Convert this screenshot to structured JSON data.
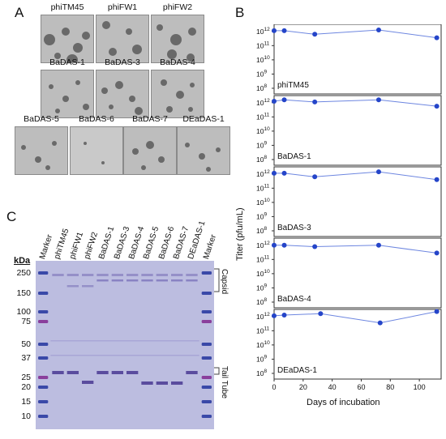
{
  "panel_a": {
    "letter": "A",
    "plaques": [
      {
        "label": "phiTM45"
      },
      {
        "label": "phiFW1"
      },
      {
        "label": "phiFW2"
      },
      {
        "label": "BaDAS-1"
      },
      {
        "label": "BaDAS-3"
      },
      {
        "label": "BaDAS-4"
      },
      {
        "label": "BaDAS-5"
      },
      {
        "label": "BaDAS-6"
      },
      {
        "label": "BaDAS-7"
      },
      {
        "label": "DEaDAS-1"
      }
    ]
  },
  "panel_c": {
    "letter": "C",
    "lanes": [
      "Marker",
      "phiTM45",
      "phiFW1",
      "phiFW2",
      "BaDAS-1",
      "BaDAS-3",
      "BaDAS-4",
      "BaDAS-5",
      "BaDAS-6",
      "BaDAS-7",
      "DEaDAS-1",
      "Marker"
    ],
    "kda_label": "kDa",
    "markers": [
      "250",
      "150",
      "100",
      "75",
      "50",
      "37",
      "25",
      "20",
      "15",
      "10"
    ],
    "capsid_label": "Capsid",
    "tail_label": "Tail Tube",
    "colors": {
      "gel": "#bcbde0",
      "band": "#5a4c9e",
      "marker_blue": "#3a49a8",
      "marker_purple": "#8a3f9c"
    }
  },
  "panel_b": {
    "letter": "B",
    "ylabel": "Titer (pfu/mL)",
    "xlabel": "Days of incubation",
    "x_ticks": [
      "0",
      "20",
      "40",
      "60",
      "80",
      "100"
    ]
  },
  "chart_data": {
    "type": "line",
    "x_range": [
      0,
      115
    ],
    "y_scale": "log",
    "y_range_log10": [
      7.6,
      12.5
    ],
    "y_ticks": [
      "10^12",
      "10^11",
      "10^10",
      "10^9",
      "10^8"
    ],
    "series_color": "#2545c9",
    "panels": [
      {
        "label": "phiTM45",
        "x": [
          0,
          7,
          28,
          72,
          112
        ],
        "y_log10": [
          12.05,
          12.05,
          11.8,
          12.1,
          11.55
        ]
      },
      {
        "label": "BaDAS-1",
        "x": [
          0,
          7,
          28,
          72,
          112
        ],
        "y_log10": [
          12.1,
          12.2,
          12.05,
          12.2,
          11.75
        ]
      },
      {
        "label": "BaDAS-3",
        "x": [
          0,
          7,
          28,
          72,
          112
        ],
        "y_log10": [
          12.05,
          12.05,
          11.8,
          12.15,
          11.6
        ]
      },
      {
        "label": "BaDAS-4",
        "x": [
          0,
          7,
          28,
          72,
          112
        ],
        "y_log10": [
          12.0,
          12.0,
          11.9,
          12.0,
          11.45
        ]
      },
      {
        "label": "DEaDAS-1",
        "x": [
          0,
          7,
          32,
          73,
          112
        ],
        "y_log10": [
          12.05,
          12.1,
          12.2,
          11.55,
          12.35
        ]
      }
    ]
  }
}
